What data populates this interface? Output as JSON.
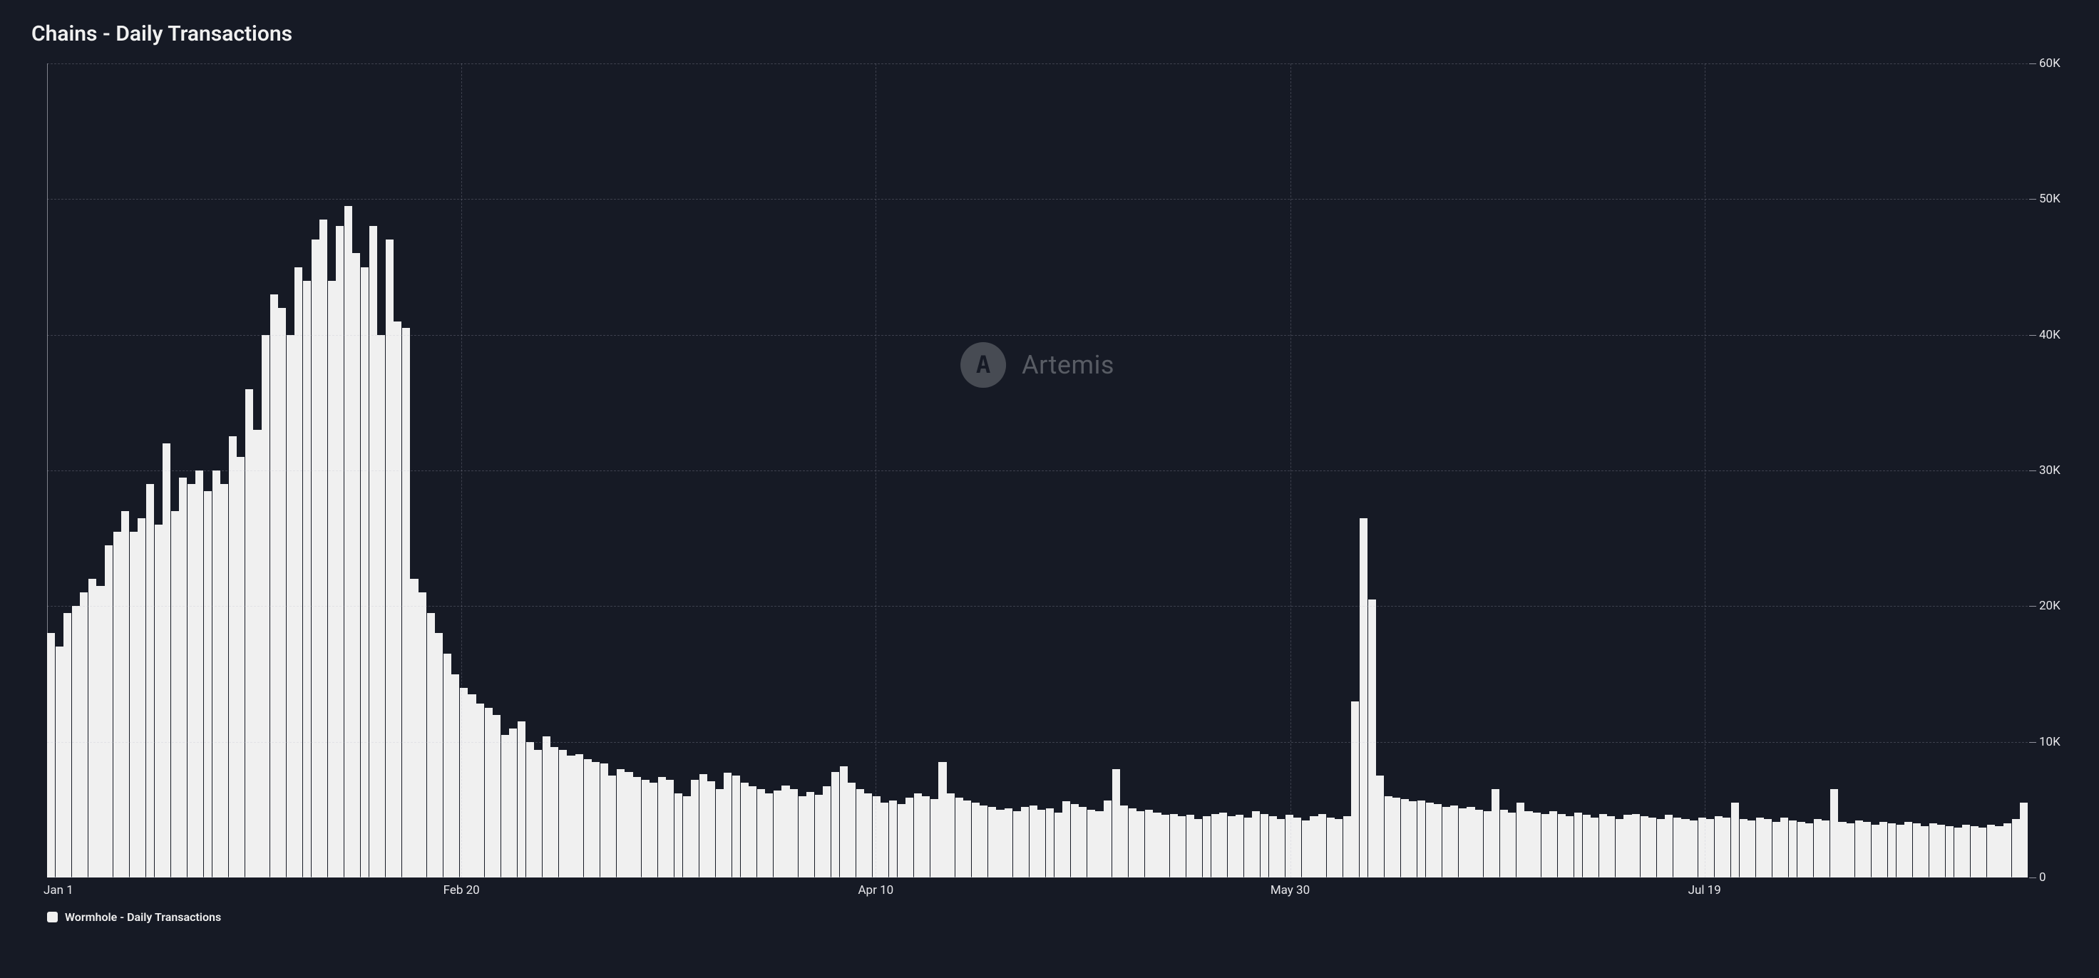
{
  "chart": {
    "type": "bar",
    "title": "Chains - Daily Transactions",
    "title_fontsize": 30,
    "title_color": "#f0f0f0",
    "background_color": "#161a25",
    "bar_color": "#f0f0f0",
    "grid_color": "rgba(180,180,200,0.25)",
    "axis_color": "rgba(200,200,210,0.6)",
    "label_color": "#e8e8ec",
    "label_fontsize": 17,
    "y_axis_side": "right",
    "ylim": [
      0,
      60000
    ],
    "ytick_step": 10000,
    "ytick_labels": [
      "0",
      "10K",
      "20K",
      "30K",
      "40K",
      "50K",
      "60K"
    ],
    "xtick_labels": [
      "Jan 1",
      "Feb 20",
      "Apr 10",
      "May 30",
      "Jul 19"
    ],
    "xtick_indices": [
      0,
      50,
      100,
      150,
      200
    ],
    "n_points": 240,
    "xgrid_indices": [
      0,
      50,
      100,
      150,
      200
    ],
    "values": [
      18000,
      17000,
      19500,
      20000,
      21000,
      22000,
      21500,
      24500,
      25500,
      27000,
      25500,
      26500,
      29000,
      26000,
      32000,
      27000,
      29500,
      29000,
      30000,
      28500,
      30000,
      29000,
      32500,
      31000,
      36000,
      33000,
      40000,
      43000,
      42000,
      40000,
      45000,
      44000,
      47000,
      48500,
      44000,
      48000,
      49500,
      46000,
      45000,
      48000,
      40000,
      47000,
      41000,
      40500,
      22000,
      21000,
      19500,
      18000,
      16500,
      15000,
      14000,
      13500,
      12800,
      12500,
      12000,
      10500,
      11000,
      11500,
      10000,
      9400,
      10400,
      9600,
      9400,
      9000,
      9100,
      8700,
      8500,
      8400,
      7500,
      8000,
      7800,
      7400,
      7200,
      7000,
      7400,
      7200,
      6200,
      6000,
      7200,
      7600,
      7100,
      6500,
      7700,
      7500,
      7000,
      6700,
      6500,
      6200,
      6400,
      6800,
      6500,
      6000,
      6300,
      6100,
      6700,
      7800,
      8200,
      7000,
      6500,
      6200,
      6000,
      5500,
      5700,
      5400,
      5900,
      6200,
      6000,
      5800,
      8500,
      6200,
      5900,
      5700,
      5500,
      5300,
      5200,
      5000,
      5100,
      4900,
      5200,
      5300,
      5000,
      5100,
      4800,
      5600,
      5400,
      5200,
      5000,
      4900,
      5700,
      8000,
      5300,
      5100,
      4900,
      5000,
      4800,
      4600,
      4700,
      4500,
      4600,
      4300,
      4500,
      4700,
      4800,
      4500,
      4600,
      4400,
      4900,
      4700,
      4500,
      4300,
      4600,
      4400,
      4200,
      4500,
      4700,
      4400,
      4300,
      4500,
      13000,
      26500,
      20500,
      7500,
      6000,
      5900,
      5800,
      5600,
      5700,
      5500,
      5400,
      5200,
      5300,
      5100,
      5200,
      5000,
      4900,
      6500,
      5000,
      4800,
      5500,
      4900,
      4800,
      4700,
      4900,
      4700,
      4500,
      4800,
      4600,
      4400,
      4700,
      4500,
      4300,
      4600,
      4700,
      4500,
      4400,
      4300,
      4600,
      4400,
      4300,
      4200,
      4400,
      4300,
      4500,
      4400,
      5500,
      4300,
      4200,
      4400,
      4300,
      4100,
      4400,
      4200,
      4100,
      4000,
      4300,
      4200,
      6500,
      4100,
      4000,
      4200,
      4100,
      3900,
      4100,
      4000,
      3900,
      4100,
      4000,
      3800,
      4000,
      3900,
      3800,
      3700,
      3900,
      3800,
      3700,
      3900,
      3800,
      4000,
      4300,
      5500
    ]
  },
  "legend": {
    "swatch_color": "#f0f0f0",
    "label": "Wormhole - Daily Transactions"
  },
  "watermark": {
    "text": "Artemis",
    "glyph": "A",
    "badge_bg": "#70737a",
    "text_color": "#8f9298"
  }
}
